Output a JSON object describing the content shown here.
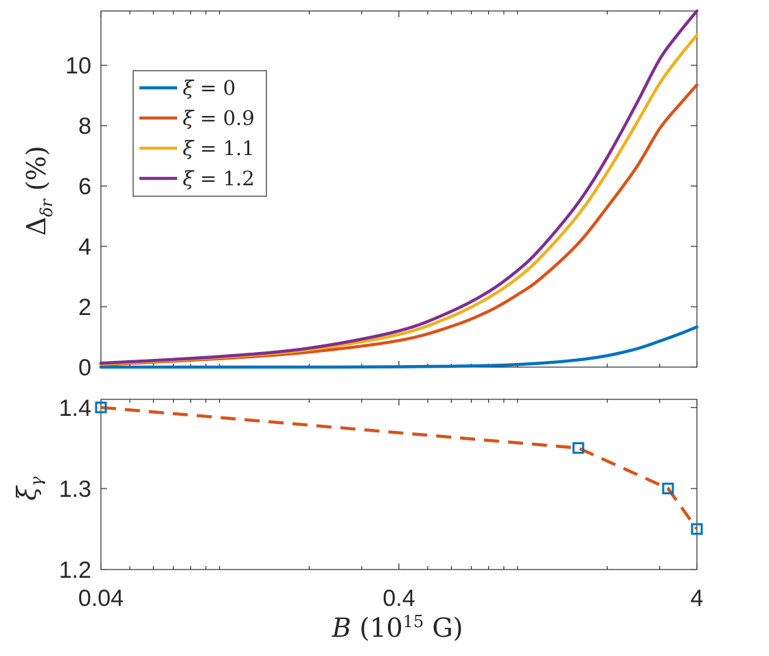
{
  "chart_data": [
    {
      "type": "line",
      "panel": "top",
      "xscale": "log",
      "xlim": [
        0.04,
        4
      ],
      "ylim": [
        0,
        11.8
      ],
      "yticks": [
        0,
        2,
        4,
        6,
        8,
        10
      ],
      "ylabel": "Δδr (%)",
      "legend_position": "top-left",
      "series": [
        {
          "name": "ξ = 0",
          "legend": "ξ = 0",
          "color": "#0072BD",
          "x": [
            0.04,
            0.1,
            0.2,
            0.4,
            0.8,
            1.2,
            1.6,
            2.0,
            2.5,
            3.0,
            3.5,
            4.0
          ],
          "y": [
            0.0,
            0.0,
            0.0,
            0.01,
            0.05,
            0.13,
            0.24,
            0.38,
            0.6,
            0.86,
            1.1,
            1.33
          ]
        },
        {
          "name": "ξ = 0.9",
          "legend": "ξ = 0.9",
          "color": "#D95319",
          "x": [
            0.04,
            0.1,
            0.2,
            0.4,
            0.6,
            0.8,
            1.0,
            1.2,
            1.6,
            2.0,
            2.5,
            3.0,
            3.5,
            4.0
          ],
          "y": [
            0.08,
            0.28,
            0.5,
            0.88,
            1.35,
            1.85,
            2.4,
            2.95,
            4.1,
            5.3,
            6.6,
            7.9,
            8.7,
            9.35
          ]
        },
        {
          "name": "ξ = 1.1",
          "legend": "ξ = 1.1",
          "color": "#EDB120",
          "x": [
            0.04,
            0.1,
            0.2,
            0.4,
            0.6,
            0.8,
            1.0,
            1.2,
            1.6,
            2.0,
            2.5,
            3.0,
            3.5,
            4.0
          ],
          "y": [
            0.1,
            0.32,
            0.58,
            1.08,
            1.68,
            2.3,
            2.95,
            3.65,
            5.05,
            6.45,
            8.05,
            9.4,
            10.3,
            11.0
          ]
        },
        {
          "name": "ξ = 1.2",
          "legend": "ξ = 1.2",
          "color": "#7E2F8E",
          "x": [
            0.04,
            0.1,
            0.2,
            0.4,
            0.6,
            0.8,
            1.0,
            1.2,
            1.6,
            2.0,
            2.5,
            3.0,
            3.5,
            4.0
          ],
          "y": [
            0.13,
            0.35,
            0.63,
            1.2,
            1.85,
            2.5,
            3.2,
            3.95,
            5.45,
            6.95,
            8.7,
            10.2,
            11.1,
            11.8
          ]
        }
      ]
    },
    {
      "type": "line",
      "panel": "bottom",
      "xscale": "log",
      "xlim": [
        0.04,
        4
      ],
      "xticks": [
        0.04,
        0.4,
        4
      ],
      "xtick_labels": [
        "0.04",
        "0.4",
        "4"
      ],
      "ylim": [
        1.2,
        1.41
      ],
      "yticks": [
        1.2,
        1.3,
        1.4
      ],
      "ytick_labels": [
        "1.2",
        "1.3",
        "1.4"
      ],
      "ylabel": "ξγ",
      "xlabel": "B (10¹⁵ G)",
      "series": [
        {
          "name": "ξγ",
          "style": "dashed",
          "color": "#D95319",
          "marker": "square",
          "marker_color": "#0072BD",
          "x": [
            0.04,
            1.6,
            3.2,
            4.0
          ],
          "y": [
            1.4,
            1.35,
            1.3,
            1.25
          ]
        }
      ]
    }
  ]
}
